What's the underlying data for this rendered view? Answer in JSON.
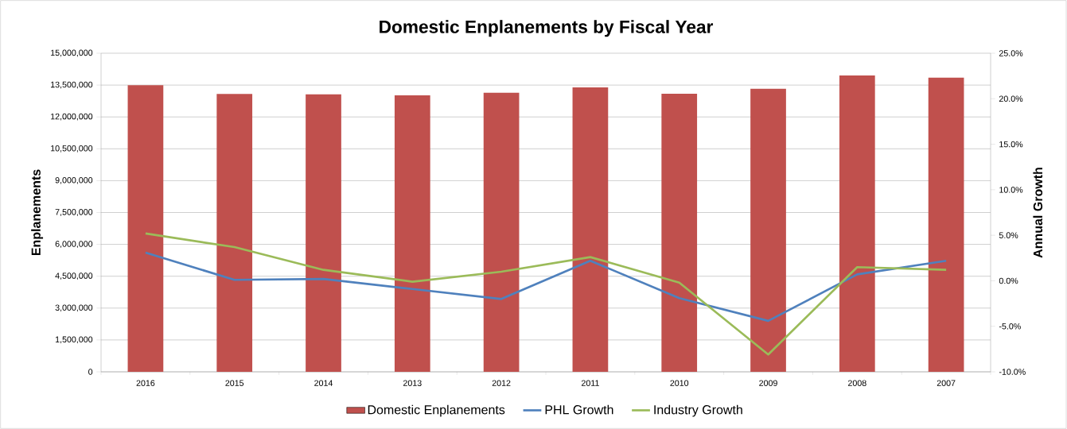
{
  "chart_data": {
    "type": "bar",
    "title": "Domestic Enplanements by Fiscal Year",
    "ylabel": "Enplanements",
    "y2label": "Annual Growth",
    "categories": [
      "2016",
      "2015",
      "2014",
      "2013",
      "2012",
      "2011",
      "2010",
      "2009",
      "2008",
      "2007"
    ],
    "series": [
      {
        "name": "Domestic Enplanements",
        "color": "#c0504d",
        "values": [
          13490000,
          13080000,
          13060000,
          13020000,
          13140000,
          13390000,
          13090000,
          13330000,
          13950000,
          13850000
        ]
      },
      {
        "name": "PHL Growth",
        "type": "line",
        "axis": "y2",
        "color": "#4f81bd",
        "values": [
          3.1,
          0.1,
          0.2,
          -0.9,
          -2.0,
          2.2,
          -1.9,
          -4.4,
          0.7,
          2.2
        ]
      },
      {
        "name": "Industry Growth",
        "type": "line",
        "axis": "y2",
        "color": "#9bbb59",
        "values": [
          5.2,
          3.7,
          1.2,
          -0.1,
          1.0,
          2.6,
          -0.2,
          -8.1,
          1.5,
          1.2
        ]
      }
    ],
    "ylim": [
      0,
      15000000
    ],
    "yticks": [
      {
        "value": 0,
        "label": "0"
      },
      {
        "value": 1500000,
        "label": "1,500,000"
      },
      {
        "value": 3000000,
        "label": "3,000,000"
      },
      {
        "value": 4500000,
        "label": "4,500,000"
      },
      {
        "value": 6000000,
        "label": "6,000,000"
      },
      {
        "value": 7500000,
        "label": "7,500,000"
      },
      {
        "value": 9000000,
        "label": "9,000,000"
      },
      {
        "value": 10500000,
        "label": "10,500,000"
      },
      {
        "value": 12000000,
        "label": "12,000,000"
      },
      {
        "value": 13500000,
        "label": "13,500,000"
      },
      {
        "value": 15000000,
        "label": "15,000,000"
      }
    ],
    "y2lim": [
      -10,
      25
    ],
    "y2ticks": [
      {
        "value": -10,
        "label": "-10.0%"
      },
      {
        "value": -5,
        "label": "-5.0%"
      },
      {
        "value": 0,
        "label": "0.0%"
      },
      {
        "value": 5,
        "label": "5.0%"
      },
      {
        "value": 10,
        "label": "10.0%"
      },
      {
        "value": 15,
        "label": "15.0%"
      },
      {
        "value": 20,
        "label": "20.0%"
      },
      {
        "value": 25,
        "label": "25.0%"
      }
    ],
    "grid": "y",
    "legend": "bottom"
  }
}
